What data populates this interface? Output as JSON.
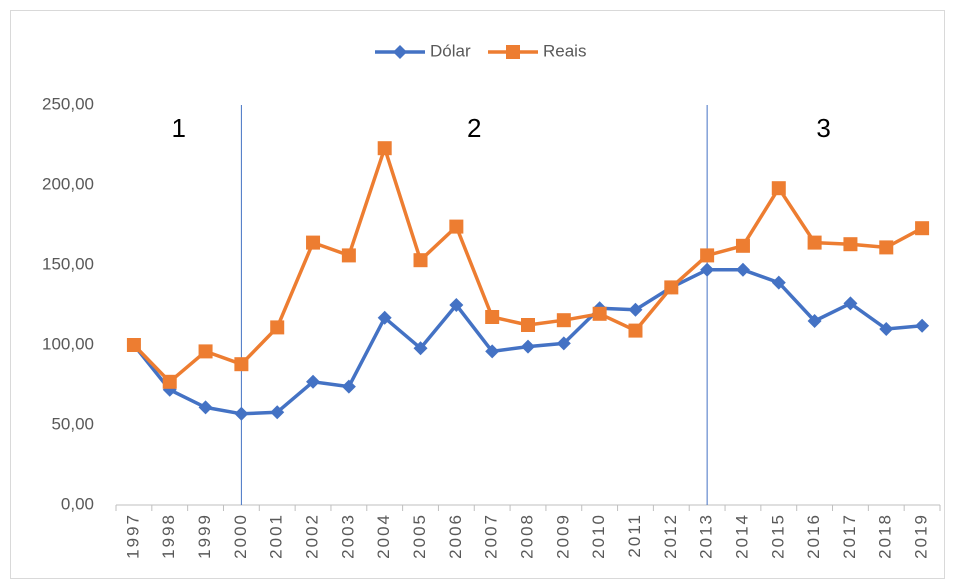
{
  "chart_data": {
    "type": "line",
    "categories": [
      "1997",
      "1998",
      "1999",
      "2000",
      "2001",
      "2002",
      "2003",
      "2004",
      "2005",
      "2006",
      "2007",
      "2008",
      "2009",
      "2010",
      "2011",
      "2012",
      "2013",
      "2014",
      "2015",
      "2016",
      "2017",
      "2018",
      "2019"
    ],
    "series": [
      {
        "name": "Dólar",
        "color": "#4472c4",
        "marker": "diamond",
        "values": [
          100,
          72,
          61,
          57,
          58,
          77,
          74,
          117,
          98,
          125,
          96,
          99,
          101,
          123,
          122,
          136,
          147,
          147,
          139,
          115,
          126,
          110,
          112
        ]
      },
      {
        "name": "Reais",
        "color": "#ed7d31",
        "marker": "square",
        "values": [
          100,
          77,
          96,
          88,
          111,
          164,
          156,
          223,
          153,
          174,
          117.5,
          112.5,
          115.5,
          119.5,
          109,
          136,
          156,
          162,
          198,
          164,
          163,
          161,
          173
        ]
      }
    ],
    "ylim": [
      0,
      250
    ],
    "yticks": [
      {
        "value": 0,
        "label": "0,00"
      },
      {
        "value": 50,
        "label": "50,00"
      },
      {
        "value": 100,
        "label": "100,00"
      },
      {
        "value": 150,
        "label": "150,00"
      },
      {
        "value": 200,
        "label": "200,00"
      },
      {
        "value": 250,
        "label": "250,00"
      }
    ],
    "grid": false,
    "legend": "top",
    "vlines": [
      "2000",
      "2013"
    ],
    "vline_color": "#4472c4",
    "annotations": [
      "1",
      "2",
      "3"
    ]
  }
}
